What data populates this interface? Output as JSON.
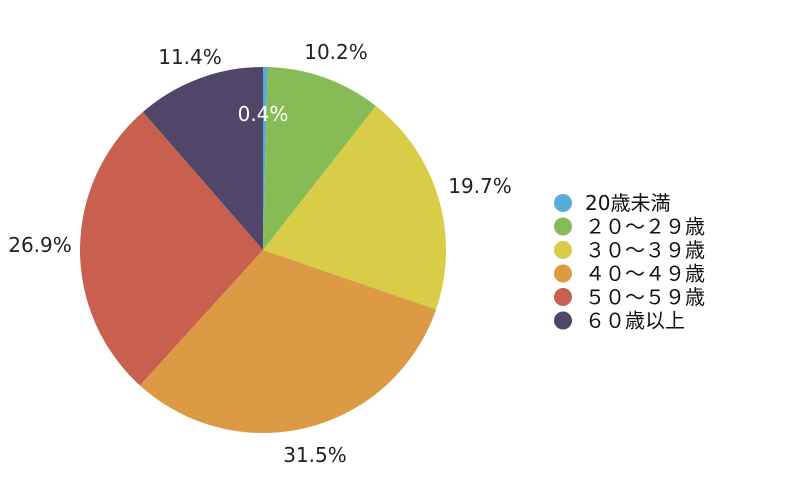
{
  "chart_data": {
    "type": "pie",
    "title": "",
    "legend_position": "right",
    "categories": [
      "20歳未満",
      "２０～２９歳",
      "３０～３９歳",
      "４０～４９歳",
      "５０～５９歳",
      "６０歳以上"
    ],
    "values": [
      0.4,
      10.2,
      19.7,
      31.5,
      26.9,
      11.4
    ],
    "labels": [
      "0.4%",
      "10.2%",
      "19.7%",
      "31.5%",
      "26.9%",
      "11.4%"
    ],
    "colors": [
      "#5aa9db",
      "#86bb55",
      "#d9cd47",
      "#dc9a45",
      "#c9604f",
      "#514668"
    ]
  }
}
